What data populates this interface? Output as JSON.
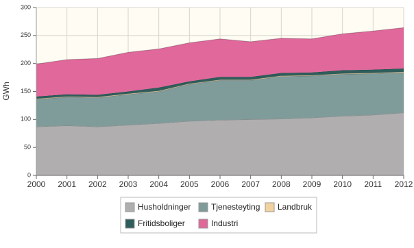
{
  "chart_data": {
    "type": "stacked_area",
    "y_label": "GWh",
    "x": [
      2000,
      2001,
      2002,
      2003,
      2004,
      2005,
      2006,
      2007,
      2008,
      2009,
      2010,
      2011,
      2012
    ],
    "xlim": [
      2000,
      2012
    ],
    "xticks": [
      2000,
      2001,
      2002,
      2003,
      2004,
      2005,
      2006,
      2007,
      2008,
      2009,
      2010,
      2011,
      2012
    ],
    "ylim": [
      0,
      300
    ],
    "yticks": [
      0,
      50,
      100,
      150,
      200,
      250,
      300
    ],
    "grid": true,
    "legend": "bottom",
    "series": [
      {
        "name": "Husholdninger",
        "color": "#b0aeae",
        "values": [
          87,
          89,
          87,
          90,
          93,
          97,
          99,
          100,
          101,
          103,
          106,
          108,
          112
        ]
      },
      {
        "name": "Tjenesteyting",
        "color": "#7f9b9a",
        "values": [
          49,
          51,
          52,
          55,
          57,
          66,
          71,
          70,
          76,
          75,
          75,
          74,
          72
        ]
      },
      {
        "name": "Landbruk",
        "color": "#f2d3a0",
        "values": [
          1,
          1,
          1,
          1,
          1,
          1,
          1,
          1,
          1,
          1,
          1,
          1,
          1
        ]
      },
      {
        "name": "Fritidsboliger",
        "color": "#2f5d5b",
        "values": [
          4,
          4,
          4,
          4,
          6,
          4,
          5,
          5,
          5,
          5,
          6,
          6,
          6
        ]
      },
      {
        "name": "Industri",
        "color": "#e0689b",
        "values": [
          58,
          62,
          65,
          70,
          69,
          69,
          68,
          63,
          62,
          60,
          65,
          69,
          73
        ]
      }
    ]
  }
}
